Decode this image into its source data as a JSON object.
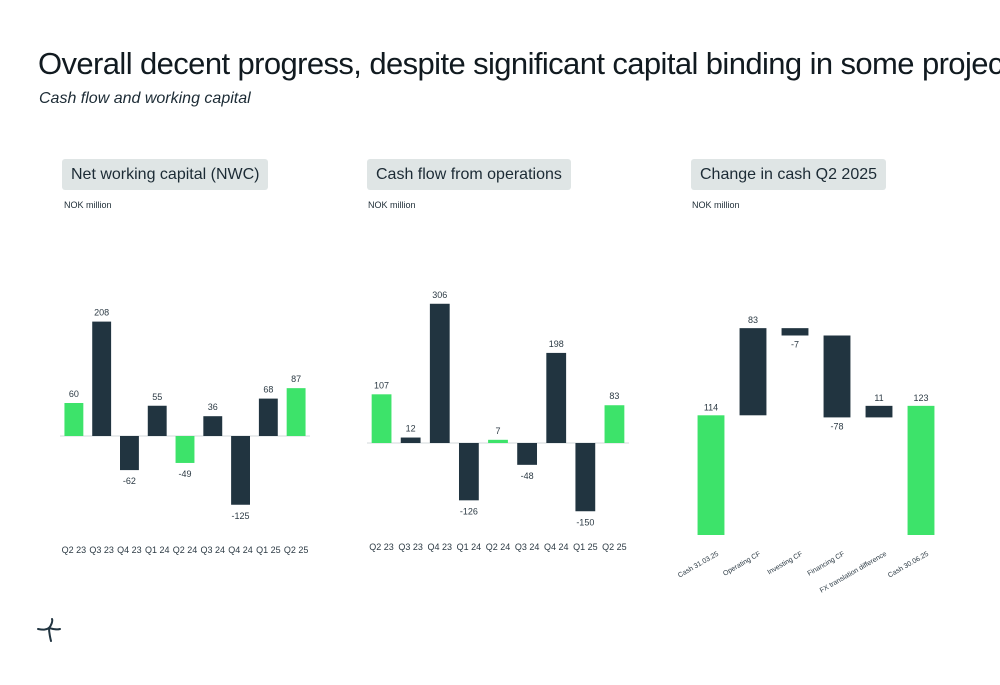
{
  "header": {
    "title": "Overall decent progress, despite significant capital binding in some projects",
    "subtitle": "Cash flow and working capital"
  },
  "colors": {
    "positive": "#3de36a",
    "dark": "#213440",
    "heading_bg": "#dfe5e5"
  },
  "logo": {
    "icon": "brand-logo-icon"
  },
  "chart_data": [
    {
      "type": "bar",
      "title": "Net working capital (NWC)",
      "ylabel": "NOK million",
      "categories": [
        "Q2 23",
        "Q3 23",
        "Q4 23",
        "Q1 24",
        "Q2 24",
        "Q3 24",
        "Q4 24",
        "Q1 25",
        "Q2 25"
      ],
      "values": [
        60,
        208,
        -62,
        55,
        -49,
        36,
        -125,
        68,
        87
      ],
      "value_labels": [
        "60",
        "208",
        "-62",
        "55",
        "-49",
        "36",
        "-125",
        "68",
        "87"
      ],
      "colors": [
        "#3de36a",
        "#213440",
        "#213440",
        "#213440",
        "#3de36a",
        "#213440",
        "#213440",
        "#213440",
        "#3de36a"
      ],
      "ylim": [
        -140,
        220
      ],
      "grid": false
    },
    {
      "type": "bar",
      "title": "Cash flow from operations",
      "ylabel": "NOK million",
      "categories": [
        "Q2 23",
        "Q3 23",
        "Q4 23",
        "Q1 24",
        "Q2 24",
        "Q3 24",
        "Q4 24",
        "Q1 25",
        "Q2 25"
      ],
      "values": [
        107,
        12,
        306,
        -126,
        7,
        -48,
        198,
        -150,
        83
      ],
      "value_labels": [
        "107",
        "12",
        "306",
        "-126",
        "7",
        "-48",
        "198",
        "-150",
        "83"
      ],
      "colors": [
        "#3de36a",
        "#213440",
        "#213440",
        "#213440",
        "#3de36a",
        "#213440",
        "#213440",
        "#213440",
        "#3de36a"
      ],
      "ylim": [
        -170,
        320
      ],
      "grid": false
    },
    {
      "type": "waterfall",
      "title": "Change in cash Q2 2025",
      "ylabel": "NOK million",
      "categories": [
        "Cash 31.03.25",
        "Operating CF",
        "Investing CF",
        "Financing CF",
        "FX translation difference",
        "Cash 30.06.25"
      ],
      "values": [
        114,
        83,
        -7,
        -78,
        11,
        123
      ],
      "value_labels": [
        "114",
        "83",
        "-7",
        "-78",
        "11",
        "123"
      ],
      "kinds": [
        "total",
        "delta",
        "delta",
        "delta",
        "delta",
        "total"
      ],
      "colors": [
        "#3de36a",
        "#213440",
        "#213440",
        "#213440",
        "#213440",
        "#3de36a"
      ],
      "ylim": [
        0,
        200
      ],
      "grid": false
    }
  ]
}
